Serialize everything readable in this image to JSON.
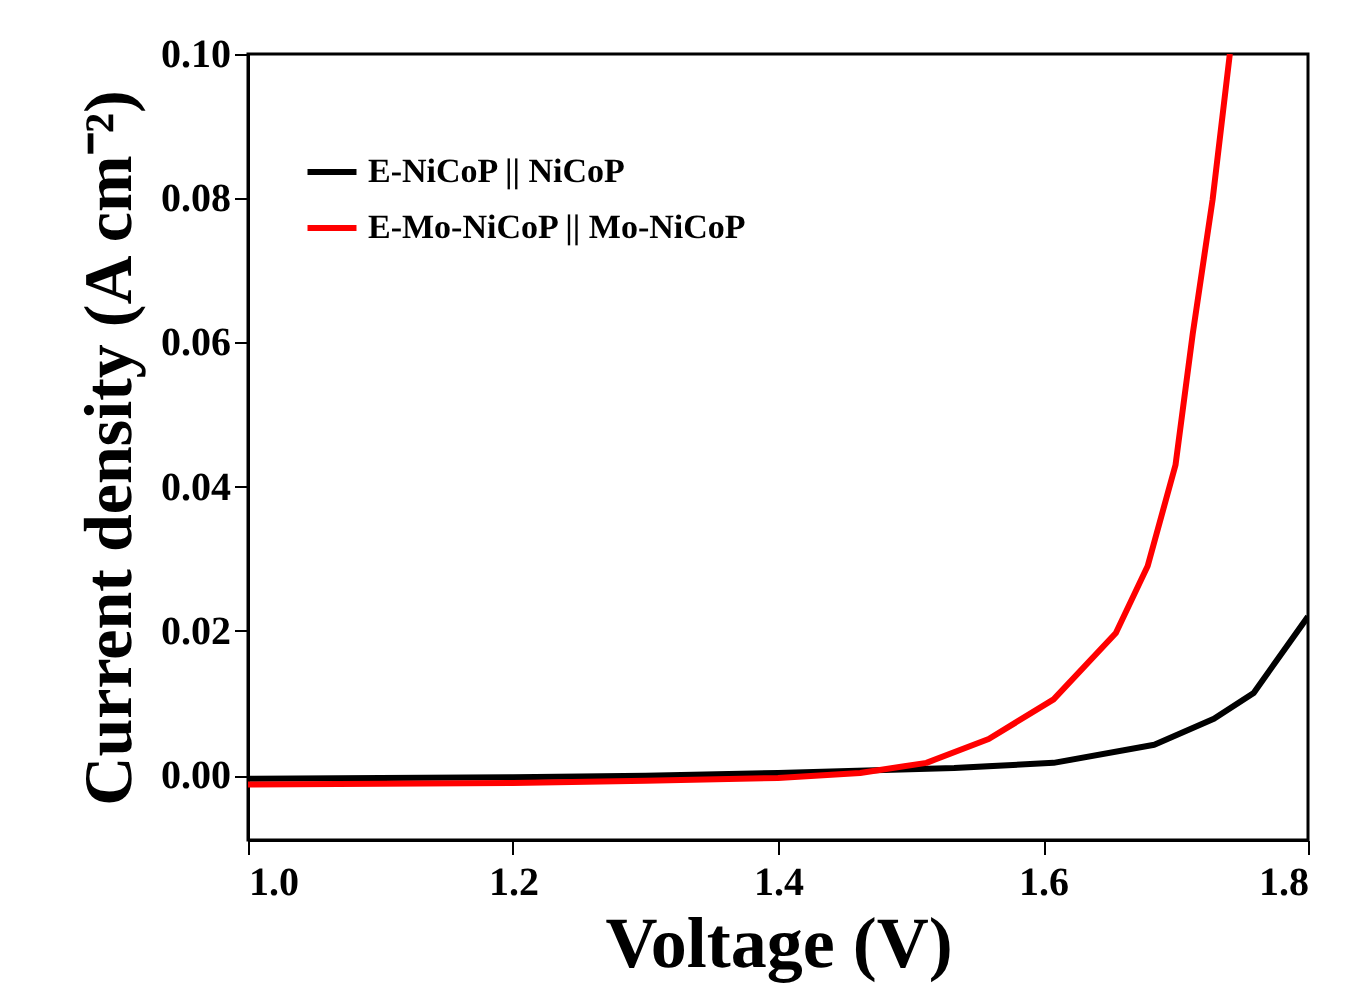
{
  "chart_data": {
    "type": "line",
    "xlabel": "Voltage (V)",
    "ylabel": "Current density (A cm⁻²)",
    "xlim": [
      1.0,
      1.8
    ],
    "xticks": [
      {
        "value": 1.0,
        "label": "1.0"
      },
      1.2,
      1.4,
      1.6,
      1.8
    ],
    "ylim": [
      -0.009,
      0.1
    ],
    "yticks": [
      {
        "value": 0,
        "label": "0.00"
      },
      {
        "value": 0.02,
        "label": "0.02"
      },
      {
        "value": 0.04,
        "label": "0.04"
      },
      {
        "value": 0.06,
        "label": "0.06"
      },
      {
        "value": 0.08,
        "label": "0.08"
      },
      {
        "value": 0.1,
        "label": "0.10"
      }
    ],
    "grid": false,
    "legend": "top left",
    "marker": "none",
    "line_style": "solid",
    "series": [
      {
        "name": "E-NiCoP || NiCoP",
        "color": "#000000",
        "x": [
          1.0,
          1.1,
          1.2,
          1.3,
          1.4,
          1.533,
          1.608,
          1.684,
          1.729,
          1.759,
          1.8
        ],
        "values": [
          -0.0005,
          -0.0004,
          -0.0003,
          -0.0001,
          0.0003,
          0.001,
          0.0017,
          0.0042,
          0.0078,
          0.0114,
          0.022
        ]
      },
      {
        "name": "E-Mo-NiCoP || Mo-NiCoP",
        "color": "#ff0000",
        "x": [
          1.0,
          1.1,
          1.2,
          1.3,
          1.4,
          1.462,
          1.512,
          1.559,
          1.608,
          1.655,
          1.679,
          1.7,
          1.713,
          1.728,
          1.741
        ],
        "values": [
          -0.0013,
          -0.0012,
          -0.0011,
          -0.0008,
          -0.0004,
          0.0003,
          0.0017,
          0.005,
          0.0105,
          0.0197,
          0.029,
          0.043,
          0.0612,
          0.0798,
          0.1
        ]
      }
    ]
  }
}
